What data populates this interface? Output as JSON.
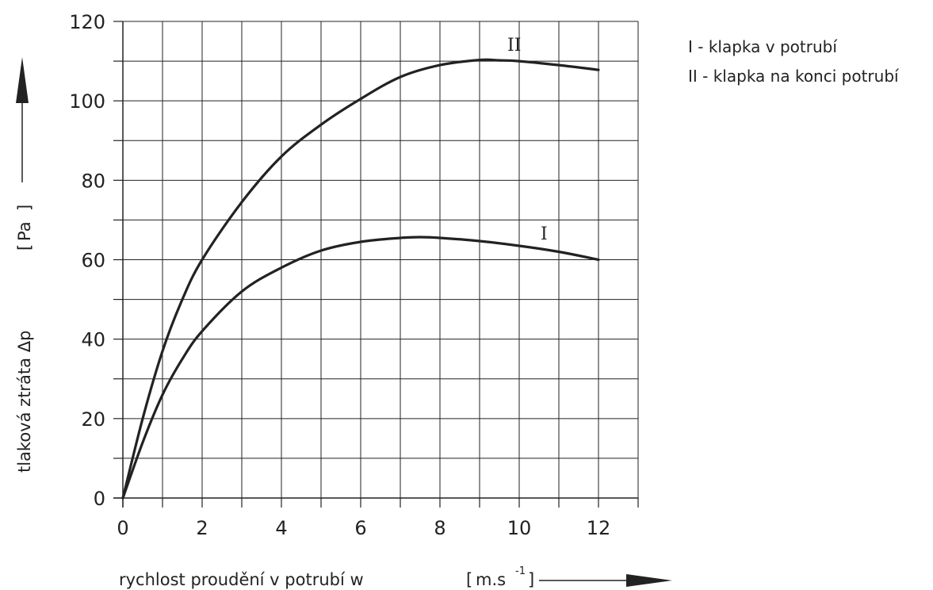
{
  "chart_data": {
    "type": "line",
    "xlabel": "rychlost  proudění v potrubí  w",
    "xunit": "m.s",
    "xunit_exp": "-1",
    "ylabel": "tlaková  ztráta  Δp",
    "yunit": "Pa",
    "xlim": [
      0,
      13
    ],
    "ylim": [
      0,
      120
    ],
    "xticks": [
      0,
      2,
      4,
      6,
      8,
      10,
      12
    ],
    "yticks": [
      0,
      20,
      40,
      60,
      80,
      100,
      120
    ],
    "grid": true,
    "legend_position": "top-right",
    "series": [
      {
        "name": "I",
        "legend": "I - klapka v potrubí",
        "x": [
          0,
          0.5,
          1,
          1.5,
          2,
          3,
          4,
          5,
          6,
          7,
          7.5,
          8,
          9,
          10,
          11,
          12
        ],
        "y": [
          0,
          14,
          26,
          35,
          42,
          52,
          58,
          62.3,
          64.5,
          65.5,
          65.7,
          65.5,
          64.7,
          63.5,
          62,
          60
        ]
      },
      {
        "name": "II",
        "legend": "II - klapka na konci potrubí",
        "x": [
          0,
          0.5,
          1,
          1.5,
          2,
          3,
          4,
          5,
          6,
          7,
          8,
          9,
          9.5,
          10,
          11,
          12
        ],
        "y": [
          0,
          20,
          37,
          50,
          60,
          74.5,
          86,
          94,
          100.5,
          106,
          109,
          110.3,
          110.2,
          110,
          109,
          107.8
        ]
      }
    ]
  }
}
